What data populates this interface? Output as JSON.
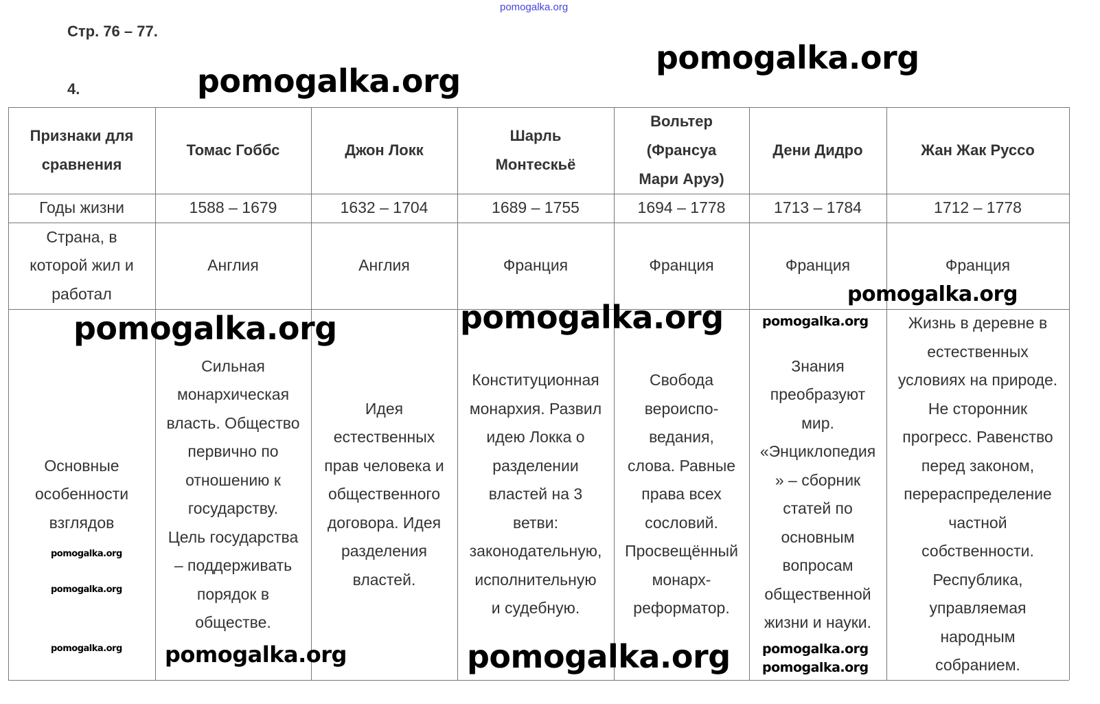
{
  "page_ref": "Стр. 76 – 77.",
  "task_number": "4.",
  "watermark": "pomogalka.org",
  "table": {
    "headers": [
      "Признаки для\nсравнения",
      "Томас Гоббс",
      "Джон Локк",
      "Шарль\nМонтескьё",
      "Вольтер\n(Франсуа\nМари Аруэ)",
      "Дени Дидро",
      "Жан Жак Руссо"
    ],
    "rows": [
      [
        "Годы жизни",
        "1588 – 1679",
        "1632 – 1704",
        "1689 – 1755",
        "1694 – 1778",
        "1713 – 1784",
        "1712 – 1778"
      ],
      [
        "Страна, в\nкоторой жил и\nработал",
        "Англия",
        "Англия",
        "Франция",
        "Франция",
        "Франция",
        "Франция"
      ],
      [
        "Основные\nособенности\nвзглядов",
        "Сильная\nмонархическая\nвласть. Общество\nпервично по\nотношению к\nгосударству.\nЦель государства\n– поддерживать\nпорядок в\nобществе.",
        "Идея\nестественных\nправ человека и\nобщественного\nдоговора. Идея\nразделения\nвластей.",
        "Конституционная\nмонархия. Развил\nидею Локка о\nразделении\nвластей на 3\nветви:\nзаконодательную,\nисполнительную\nи судебную.",
        "Свобода\nвероиспо-\nведания,\nслова. Равные\nправа всех\nсословий.\nПросвещённый\nмонарх-\nреформатор.",
        "Знания\nпреобразуют\nмир.\n«Энциклопедия\n» – сборник\nстатей по\nосновным\nвопросам\nобщественной\nжизни и науки.",
        "Жизнь в деревне в\nестественных\nусловиях на природе.\nНе сторонник\nпрогресс. Равенство\nперед законом,\nперераспределение\nчастной\nсобственности.\nРеспублика,\nуправляемая\nнародным\nсобранием."
      ]
    ]
  },
  "colors": {
    "text": "#333333",
    "grid": "#777777",
    "watermark_top": "#4444dd",
    "watermark": "#000000"
  }
}
